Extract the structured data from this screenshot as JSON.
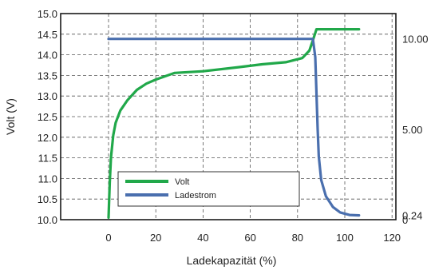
{
  "chart_data": {
    "type": "line",
    "xlabel": "Ladekapazität (%)",
    "ylabel": "Volt (V)",
    "x_ticks": [
      "0",
      "20",
      "40",
      "60",
      "80",
      "100",
      "120"
    ],
    "xlim": [
      -20,
      120
    ],
    "ylim": [
      10.0,
      15.0
    ],
    "y_ticks": [
      "10.0",
      "10.5",
      "11.0",
      "11.5",
      "12.0",
      "12.5",
      "13.0",
      "13.5",
      "14.0",
      "14.5",
      "15.0"
    ],
    "y2_ticks": [
      "10.00",
      "5.00",
      "0.24",
      "0"
    ],
    "y2_tick_values": [
      10.0,
      5.0,
      0.24,
      0
    ],
    "y2lim": [
      0,
      11.4
    ],
    "grid": true,
    "legend": {
      "position": "bottom-center",
      "entries": [
        {
          "label": "Volt",
          "color": "#21a84a"
        },
        {
          "label": "Ladestrom",
          "color": "#4a6fae"
        }
      ]
    },
    "series": [
      {
        "name": "Volt",
        "axis": "left",
        "color": "#21a84a",
        "x": [
          0,
          0.5,
          1,
          2,
          3,
          5,
          8,
          12,
          16,
          20,
          25,
          28,
          40,
          55,
          65,
          75,
          82,
          85,
          86.5,
          88,
          100,
          106
        ],
        "y": [
          10.05,
          10.9,
          11.5,
          12.05,
          12.35,
          12.65,
          12.9,
          13.15,
          13.3,
          13.4,
          13.5,
          13.56,
          13.6,
          13.7,
          13.77,
          13.82,
          13.92,
          14.1,
          14.35,
          14.62,
          14.62,
          14.62
        ]
      },
      {
        "name": "Ladestrom",
        "axis": "right",
        "color": "#4a6fae",
        "x": [
          0,
          86.5,
          87.5,
          88,
          88.5,
          89,
          90,
          92,
          95,
          98,
          102,
          106
        ],
        "y": [
          10.0,
          10.0,
          9.0,
          7.0,
          5.0,
          3.5,
          2.2,
          1.3,
          0.7,
          0.4,
          0.26,
          0.24
        ]
      }
    ]
  }
}
